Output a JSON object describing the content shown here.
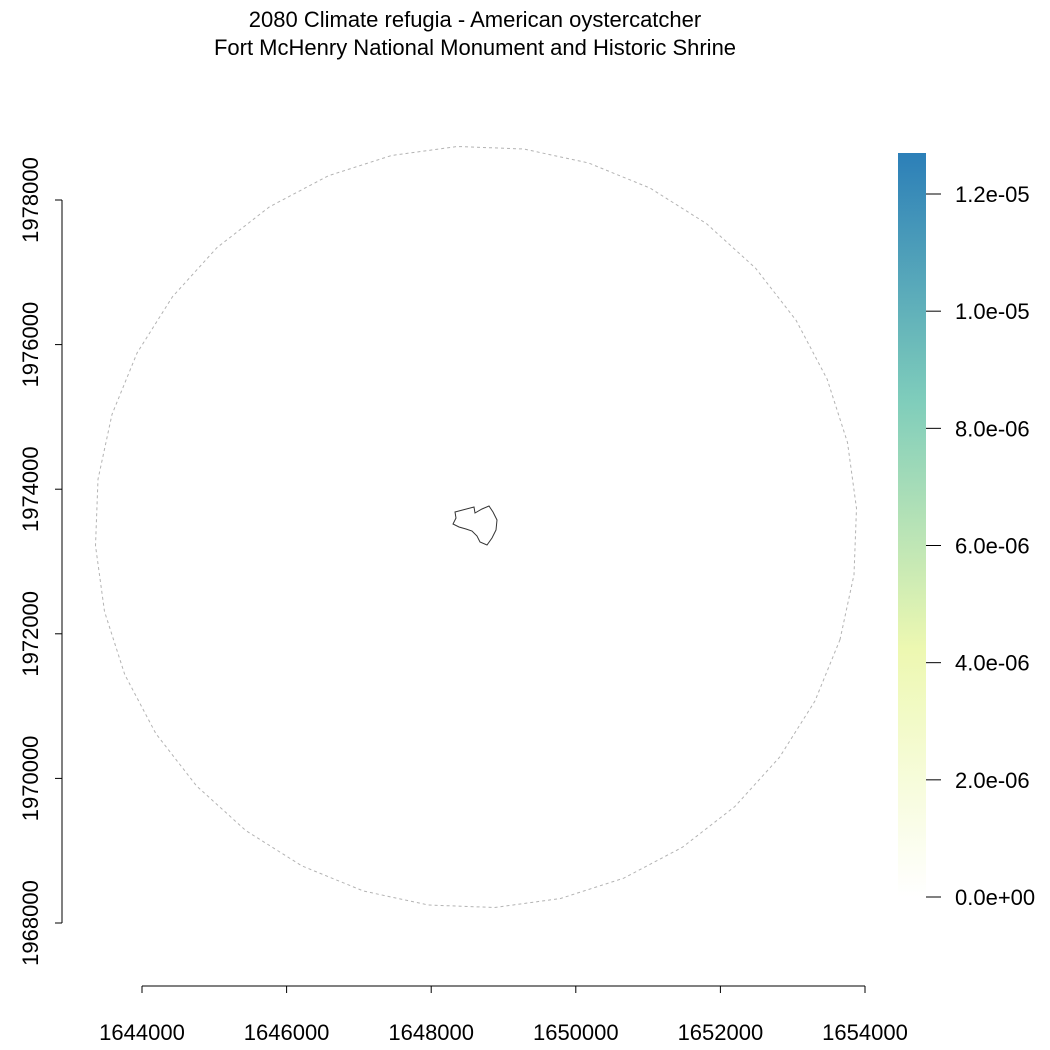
{
  "title": {
    "line1": "2080 Climate refugia - American oystercatcher",
    "line2": "Fort McHenry National Monument and Historic Shrine"
  },
  "map": {
    "x_ticks": [
      1644000,
      1646000,
      1648000,
      1650000,
      1652000,
      1654000
    ],
    "y_ticks": [
      1968000,
      1970000,
      1972000,
      1974000,
      1976000,
      1978000
    ],
    "x_tick_labels": [
      "1644000",
      "1646000",
      "1648000",
      "1650000",
      "1652000",
      "1654000"
    ],
    "y_tick_labels": [
      "1968000",
      "1970000",
      "1972000",
      "1974000",
      "1976000",
      "1978000"
    ],
    "buffer_style": "dashed circle",
    "buffer_color": "#b3b3b3",
    "park_boundary_color": "#333333"
  },
  "legend": {
    "type": "continuous color bar",
    "min": 0,
    "max": 1.27e-05,
    "ticks": [
      0,
      2e-06,
      4e-06,
      6e-06,
      8e-06,
      1e-05,
      1.2e-05
    ],
    "tick_labels": [
      "0.0e+00",
      "2.0e-06",
      "4.0e-06",
      "6.0e-06",
      "8.0e-06",
      "1.0e-05",
      "1.2e-05"
    ],
    "colors": [
      "#ffffff",
      "#edf8b1",
      "#7fcdbb",
      "#2c7fb8"
    ]
  }
}
